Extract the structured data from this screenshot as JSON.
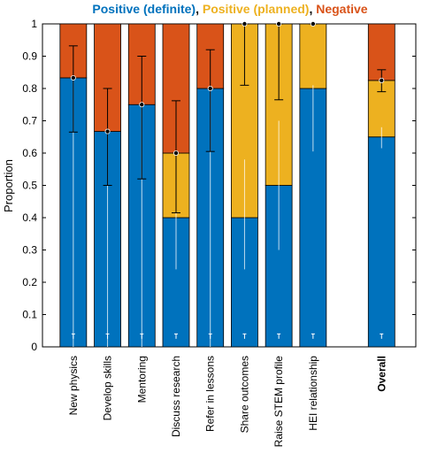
{
  "chart_data": {
    "type": "bar",
    "stacked": true,
    "title_parts": [
      {
        "text": "Positive (definite)",
        "color": "#0072BD"
      },
      {
        "text": ", ",
        "color": "#000000"
      },
      {
        "text": "Positive (planned)",
        "color": "#EDB120"
      },
      {
        "text": ", ",
        "color": "#000000"
      },
      {
        "text": "Negative",
        "color": "#D95319"
      }
    ],
    "ylabel": "Proportion",
    "ylim": [
      0,
      1
    ],
    "yticks": [
      "0",
      "0.1",
      "0.2",
      "0.3",
      "0.4",
      "0.5",
      "0.6",
      "0.7",
      "0.8",
      "0.9",
      "1"
    ],
    "categories": [
      "New physics",
      "Develop skills",
      "Mentoring",
      "Discuss research",
      "Refer in lessons",
      "Share outcomes",
      "Raise STEM profile",
      "HEI relationship",
      "Overall"
    ],
    "bold_categories": [
      "Overall"
    ],
    "slots": [
      1,
      2,
      3,
      4,
      5,
      6,
      7,
      8,
      10
    ],
    "series": [
      {
        "name": "Positive (definite)",
        "color": "#0072BD",
        "values": [
          0.833,
          0.667,
          0.75,
          0.4,
          0.8,
          0.4,
          0.5,
          0.8,
          0.65
        ]
      },
      {
        "name": "Positive (planned)",
        "color": "#EDB120",
        "values": [
          0,
          0,
          0,
          0.2,
          0,
          0.6,
          0.5,
          0.2,
          0.175
        ]
      },
      {
        "name": "Negative",
        "color": "#D95319",
        "values": [
          0.167,
          0.333,
          0.25,
          0.4,
          0.2,
          0,
          0,
          0,
          0.175
        ]
      }
    ],
    "positive_total": {
      "values": [
        0.833,
        0.667,
        0.75,
        0.6,
        0.8,
        1.0,
        1.0,
        1.0,
        0.825
      ],
      "lower": [
        0.665,
        0.5,
        0.52,
        0.415,
        0.605,
        0.81,
        0.765,
        1.0,
        0.79
      ],
      "upper": [
        0.932,
        0.8,
        0.9,
        0.762,
        0.92,
        1.0,
        1.0,
        1.0,
        0.858
      ]
    },
    "definite_interval": {
      "lower": [
        0.0,
        0.0,
        0.0,
        0.24,
        0.0,
        0.24,
        0.3,
        0.605,
        0.615
      ],
      "upper": [
        0.833,
        0.667,
        0.75,
        0.58,
        0.8,
        0.58,
        0.7,
        0.81,
        0.68
      ]
    }
  }
}
